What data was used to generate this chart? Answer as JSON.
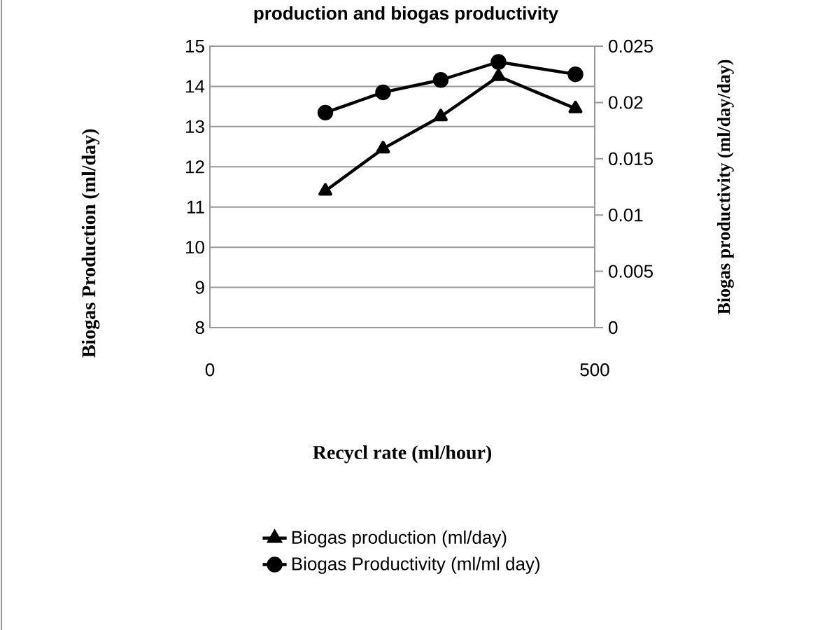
{
  "chart_data": {
    "type": "line",
    "title": "production and biogas productivity",
    "xlabel": "Recycl rate (ml/hour)",
    "ylabel": "Biogas Production (ml/day)",
    "y2label": "Biogas  productivity (ml/day/day)",
    "x": [
      150,
      225,
      300,
      375,
      475
    ],
    "series": [
      {
        "name": "Biogas production (ml/day)",
        "color": "#000000",
        "marker": "triangle",
        "values": [
          11.4,
          12.45,
          13.25,
          14.25,
          13.45
        ]
      },
      {
        "name": "Biogas Productivity (ml/ml day)",
        "color": "#000000",
        "marker": "circle",
        "axis": "y2",
        "values": [
          0.0191,
          0.0209,
          0.022,
          0.0236,
          0.0225
        ]
      }
    ],
    "xlim": [
      0,
      500
    ],
    "xticks": [
      0,
      500
    ],
    "ylim": [
      8,
      15
    ],
    "yticks": [
      8,
      9,
      10,
      11,
      12,
      13,
      14,
      15
    ],
    "y2lim": [
      0,
      0.025
    ],
    "y2ticks": [
      0,
      0.005,
      0.01,
      0.015,
      0.02,
      0.025
    ],
    "grid": "y",
    "legend": "bottom"
  }
}
